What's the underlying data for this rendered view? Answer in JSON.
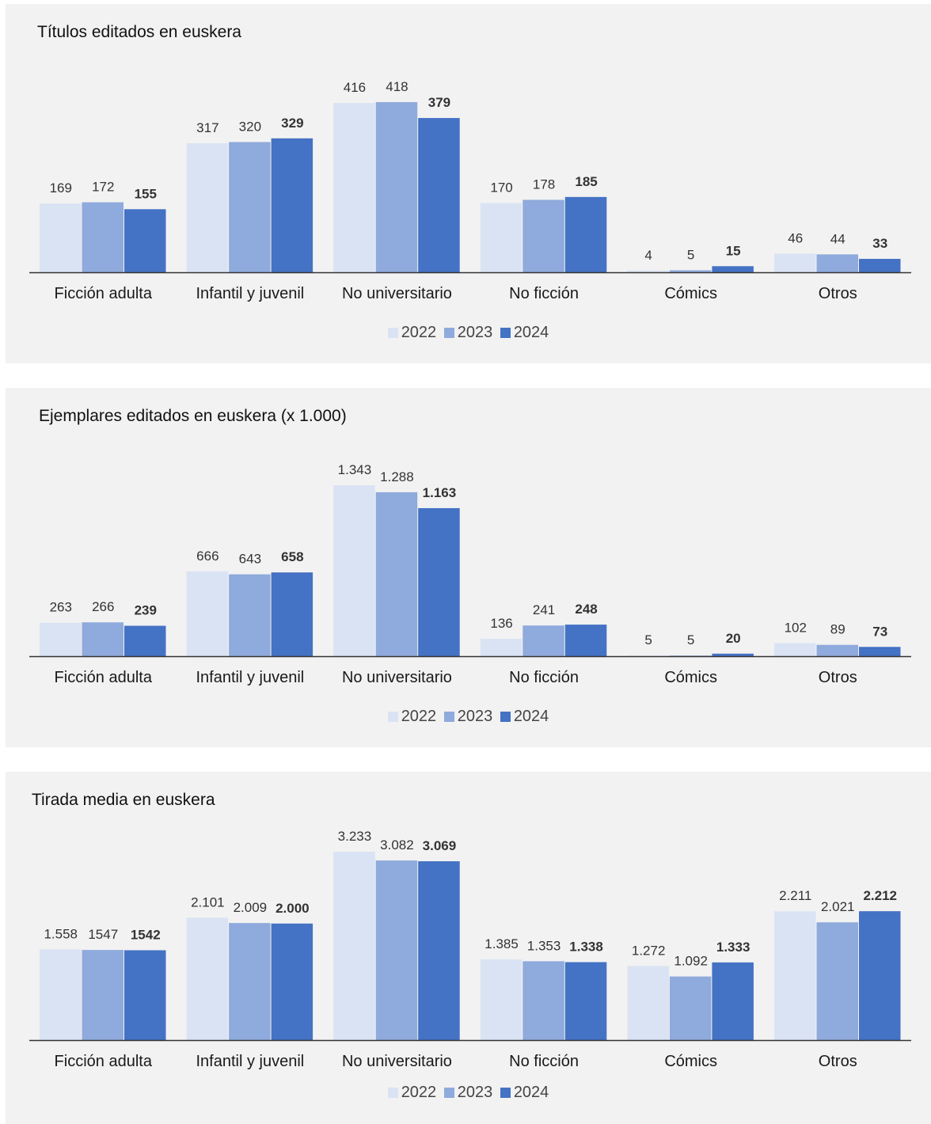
{
  "colors": {
    "series_2022": "#dae3f3",
    "series_2023": "#8faadc",
    "series_2024": "#4472c4",
    "axis": "#333333",
    "panel_background": "#f2f2f2"
  },
  "chart_data": [
    {
      "type": "bar",
      "title": "Títulos editados en euskera",
      "categories": [
        "Ficción adulta",
        "Infantil y juvenil",
        "No universitario",
        "No ficción",
        "Cómics",
        "Otros"
      ],
      "series": [
        {
          "name": "2022",
          "values": [
            169,
            317,
            416,
            170,
            4,
            46
          ],
          "labels": [
            "169",
            "317",
            "416",
            "170",
            "4",
            "46"
          ]
        },
        {
          "name": "2023",
          "values": [
            172,
            320,
            418,
            178,
            5,
            44
          ],
          "labels": [
            "172",
            "320",
            "418",
            "178",
            "5",
            "44"
          ]
        },
        {
          "name": "2024",
          "values": [
            155,
            329,
            379,
            185,
            15,
            33
          ],
          "labels": [
            "155",
            "329",
            "379",
            "185",
            "15",
            "33"
          ]
        }
      ],
      "ylim": [
        0,
        420
      ],
      "grid": false,
      "legend_position": "bottom"
    },
    {
      "type": "bar",
      "title": "Ejemplares editados en euskera (x 1.000)",
      "categories": [
        "Ficción adulta",
        "Infantil y juvenil",
        "No universitario",
        "No ficción",
        "Cómics",
        "Otros"
      ],
      "series": [
        {
          "name": "2022",
          "values": [
            263,
            666,
            1343,
            136,
            5,
            102
          ],
          "labels": [
            "263",
            "666",
            "1.343",
            "136",
            "5",
            "102"
          ]
        },
        {
          "name": "2023",
          "values": [
            266,
            643,
            1288,
            241,
            5,
            89
          ],
          "labels": [
            "266",
            "643",
            "1.288",
            "241",
            "5",
            "89"
          ]
        },
        {
          "name": "2024",
          "values": [
            239,
            658,
            1163,
            248,
            20,
            73
          ],
          "labels": [
            "239",
            "658",
            "1.163",
            "248",
            "20",
            "73"
          ]
        }
      ],
      "ylim": [
        0,
        1343
      ],
      "grid": false,
      "legend_position": "bottom"
    },
    {
      "type": "bar",
      "title": "Tirada media en euskera",
      "categories": [
        "Ficción adulta",
        "Infantil y juvenil",
        "No universitario",
        "No ficción",
        "Cómics",
        "Otros"
      ],
      "series": [
        {
          "name": "2022",
          "values": [
            1558,
            2101,
            3233,
            1385,
            1272,
            2211
          ],
          "labels": [
            "1.558",
            "2.101",
            "3.233",
            "1.385",
            "1.272",
            "2.211"
          ]
        },
        {
          "name": "2023",
          "values": [
            1547,
            2009,
            3082,
            1353,
            1092,
            2021
          ],
          "labels": [
            "1547",
            "2.009",
            "3.082",
            "1.353",
            "1.092",
            "2.021"
          ]
        },
        {
          "name": "2024",
          "values": [
            1542,
            2000,
            3069,
            1338,
            1333,
            2212
          ],
          "labels": [
            "1542",
            "2.000",
            "3.069",
            "1.338",
            "1.333",
            "2.212"
          ]
        }
      ],
      "ylim": [
        0,
        3233
      ],
      "grid": false,
      "legend_position": "bottom"
    }
  ]
}
